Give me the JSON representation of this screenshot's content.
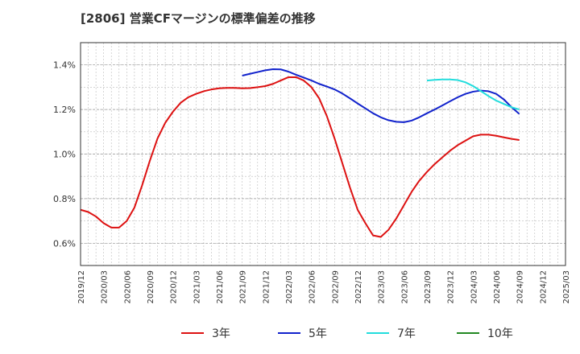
{
  "chart_data": {
    "type": "line",
    "title": "[2806]  営業CFマージンの標準偏差の推移",
    "xlabel": "",
    "ylabel": "",
    "ylim": [
      0.5,
      1.5
    ],
    "yticks": [
      0.6,
      0.8,
      1.0,
      1.2,
      1.4
    ],
    "ytick_labels": [
      "0.6%",
      "0.8%",
      "1.0%",
      "1.2%",
      "1.4%"
    ],
    "xticks": [
      "2019/12",
      "2020/03",
      "2020/06",
      "2020/09",
      "2020/12",
      "2021/03",
      "2021/06",
      "2021/09",
      "2021/12",
      "2022/03",
      "2022/06",
      "2022/09",
      "2022/12",
      "2023/03",
      "2023/06",
      "2023/09",
      "2023/12",
      "2024/03",
      "2024/06",
      "2024/09",
      "2024/12",
      "2025/03"
    ],
    "grid": true,
    "legend_position": "bottom",
    "series": [
      {
        "name": "3年",
        "color": "#dd1111",
        "x": [
          "2019/12",
          "2020/01",
          "2020/02",
          "2020/03",
          "2020/04",
          "2020/05",
          "2020/06",
          "2020/07",
          "2020/08",
          "2020/09",
          "2020/10",
          "2020/11",
          "2020/12",
          "2021/01",
          "2021/02",
          "2021/03",
          "2021/04",
          "2021/05",
          "2021/06",
          "2021/07",
          "2021/08",
          "2021/09",
          "2021/10",
          "2021/11",
          "2021/12",
          "2022/01",
          "2022/02",
          "2022/03",
          "2022/04",
          "2022/05",
          "2022/06",
          "2022/07",
          "2022/08",
          "2022/09",
          "2022/10",
          "2022/11",
          "2022/12",
          "2023/01",
          "2023/02",
          "2023/03",
          "2023/04",
          "2023/05",
          "2023/06",
          "2023/07",
          "2023/08",
          "2023/09",
          "2023/10",
          "2023/11",
          "2023/12",
          "2024/01",
          "2024/02",
          "2024/03",
          "2024/04",
          "2024/05",
          "2024/06",
          "2024/07",
          "2024/08",
          "2024/09"
        ],
        "values": [
          0.75,
          0.74,
          0.72,
          0.69,
          0.67,
          0.67,
          0.7,
          0.76,
          0.86,
          0.97,
          1.07,
          1.14,
          1.19,
          1.23,
          1.255,
          1.27,
          1.282,
          1.29,
          1.295,
          1.297,
          1.297,
          1.295,
          1.296,
          1.3,
          1.305,
          1.315,
          1.33,
          1.345,
          1.345,
          1.33,
          1.3,
          1.25,
          1.17,
          1.07,
          0.96,
          0.85,
          0.75,
          0.69,
          0.635,
          0.628,
          0.66,
          0.71,
          0.77,
          0.83,
          0.88,
          0.92,
          0.955,
          0.985,
          1.015,
          1.04,
          1.06,
          1.08,
          1.087,
          1.087,
          1.082,
          1.075,
          1.068,
          1.063
        ]
      },
      {
        "name": "5年",
        "color": "#1122cc",
        "x": [
          "2021/09",
          "2021/10",
          "2021/11",
          "2021/12",
          "2022/01",
          "2022/02",
          "2022/03",
          "2022/04",
          "2022/05",
          "2022/06",
          "2022/07",
          "2022/08",
          "2022/09",
          "2022/10",
          "2022/11",
          "2022/12",
          "2023/01",
          "2023/02",
          "2023/03",
          "2023/04",
          "2023/05",
          "2023/06",
          "2023/07",
          "2023/08",
          "2023/09",
          "2023/10",
          "2023/11",
          "2023/12",
          "2024/01",
          "2024/02",
          "2024/03",
          "2024/04",
          "2024/05",
          "2024/06",
          "2024/07",
          "2024/08",
          "2024/09"
        ],
        "values": [
          1.352,
          1.36,
          1.368,
          1.376,
          1.381,
          1.38,
          1.37,
          1.356,
          1.343,
          1.33,
          1.315,
          1.303,
          1.29,
          1.272,
          1.25,
          1.227,
          1.205,
          1.183,
          1.165,
          1.152,
          1.145,
          1.143,
          1.15,
          1.165,
          1.183,
          1.2,
          1.218,
          1.237,
          1.255,
          1.27,
          1.28,
          1.285,
          1.282,
          1.27,
          1.245,
          1.21,
          1.18
        ]
      },
      {
        "name": "7年",
        "color": "#22dddd",
        "x": [
          "2023/09",
          "2023/10",
          "2023/11",
          "2023/12",
          "2024/01",
          "2024/02",
          "2024/03",
          "2024/04",
          "2024/05",
          "2024/06",
          "2024/07",
          "2024/08",
          "2024/09"
        ],
        "values": [
          1.33,
          1.333,
          1.335,
          1.335,
          1.332,
          1.322,
          1.305,
          1.283,
          1.26,
          1.24,
          1.225,
          1.21,
          1.2
        ]
      },
      {
        "name": "10年",
        "color": "#228822",
        "x": [],
        "values": []
      }
    ]
  }
}
